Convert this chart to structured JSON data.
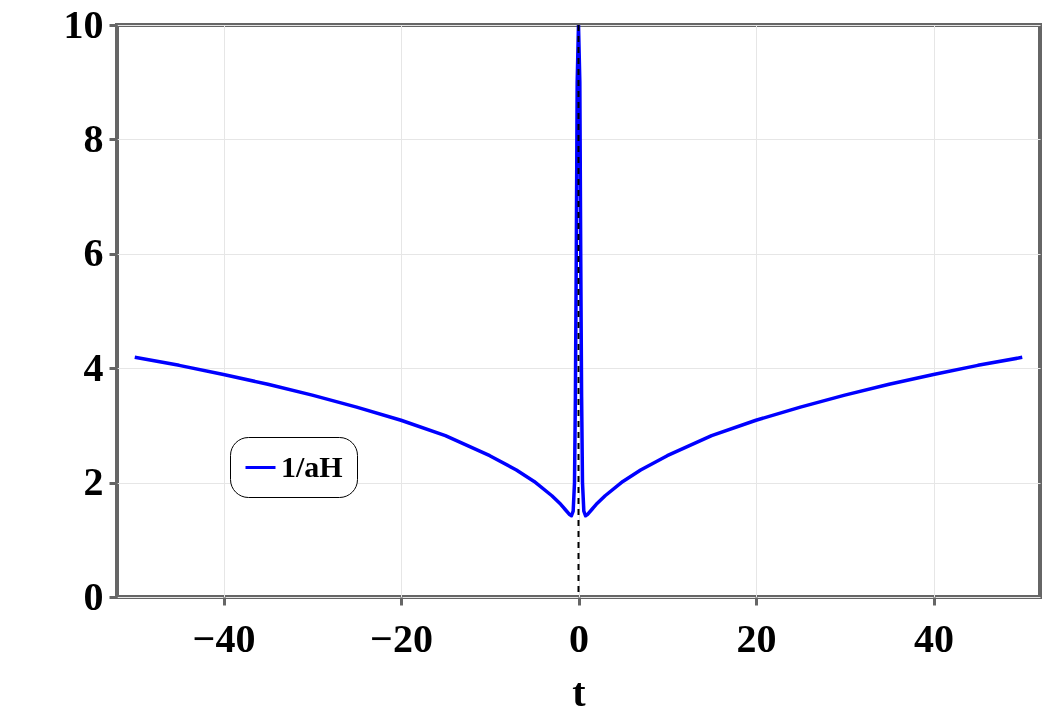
{
  "chart_data": {
    "type": "line",
    "xlabel": "t",
    "x": [
      -50,
      -45,
      -40,
      -35,
      -30,
      -25,
      -20,
      -15,
      -10,
      -7,
      -5,
      -3,
      -2,
      -1.5,
      -1,
      -0.8,
      -0.6,
      -0.45,
      -0.35,
      -0.25,
      -0.15,
      0,
      0.15,
      0.25,
      0.35,
      0.45,
      0.6,
      0.8,
      1,
      1.5,
      2,
      3,
      5,
      7,
      10,
      15,
      20,
      25,
      30,
      35,
      40,
      45,
      50
    ],
    "series": [
      {
        "name": "1/aH",
        "color": "#0000ff",
        "values": [
          4.19,
          4.05,
          3.89,
          3.72,
          3.53,
          3.32,
          3.09,
          2.82,
          2.47,
          2.22,
          2.02,
          1.77,
          1.62,
          1.53,
          1.44,
          1.42,
          1.5,
          2.0,
          3.5,
          6,
          9,
          10,
          9,
          6,
          3.5,
          2.0,
          1.5,
          1.42,
          1.44,
          1.53,
          1.62,
          1.77,
          2.02,
          2.22,
          2.47,
          2.82,
          3.09,
          3.32,
          3.53,
          3.72,
          3.89,
          4.05,
          4.19
        ]
      }
    ],
    "xlim": [
      -52,
      52
    ],
    "ylim": [
      0,
      10
    ],
    "xticks": [
      -40,
      -20,
      0,
      20,
      40
    ],
    "yticks": [
      0,
      2,
      4,
      6,
      8,
      10
    ],
    "ref_lines": [
      {
        "axis": "x",
        "value": 0,
        "color": "#000000",
        "line_style": "dashed"
      }
    ],
    "grid": true,
    "legend": "bottom left"
  }
}
